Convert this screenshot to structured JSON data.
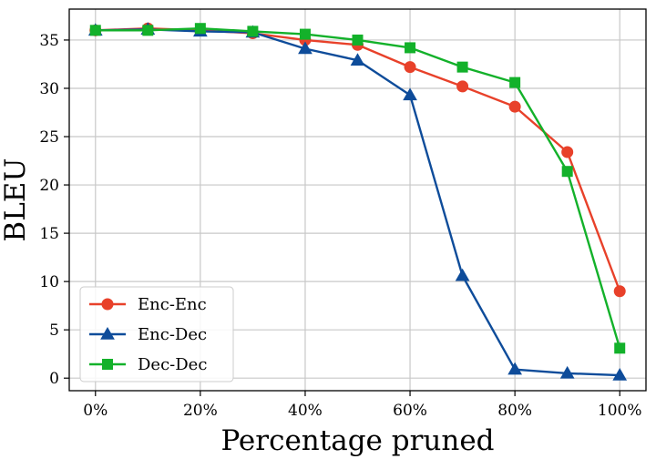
{
  "chart_data": {
    "type": "line",
    "xlabel": "Percentage pruned",
    "ylabel": "BLEU",
    "x": [
      0,
      10,
      20,
      30,
      40,
      50,
      60,
      70,
      80,
      90,
      100
    ],
    "x_tick_values": [
      0,
      20,
      40,
      60,
      80,
      100
    ],
    "x_tick_labels": [
      "0%",
      "20%",
      "40%",
      "60%",
      "80%",
      "100%"
    ],
    "y_tick_values": [
      0,
      5,
      10,
      15,
      20,
      25,
      30,
      35
    ],
    "y_tick_labels": [
      "0",
      "5",
      "10",
      "15",
      "20",
      "25",
      "30",
      "35"
    ],
    "xlim": [
      -5,
      105
    ],
    "ylim": [
      -1.3,
      38.2
    ],
    "grid": true,
    "legend_position": "bottom-left",
    "series": [
      {
        "name": "Enc-Enc",
        "color": "#e8412a",
        "marker": "circle",
        "values": [
          36.0,
          36.2,
          36.0,
          35.7,
          35.0,
          34.5,
          32.2,
          30.2,
          28.1,
          23.4,
          9.0
        ]
      },
      {
        "name": "Enc-Dec",
        "color": "#0e4c9a",
        "marker": "triangle",
        "values": [
          36.0,
          36.1,
          35.9,
          35.8,
          34.1,
          32.9,
          29.3,
          10.6,
          0.9,
          0.5,
          0.3
        ]
      },
      {
        "name": "Dec-Dec",
        "color": "#13b12a",
        "marker": "square",
        "values": [
          36.0,
          36.0,
          36.2,
          35.9,
          35.6,
          35.0,
          34.2,
          32.2,
          30.6,
          21.4,
          3.1
        ]
      }
    ]
  }
}
